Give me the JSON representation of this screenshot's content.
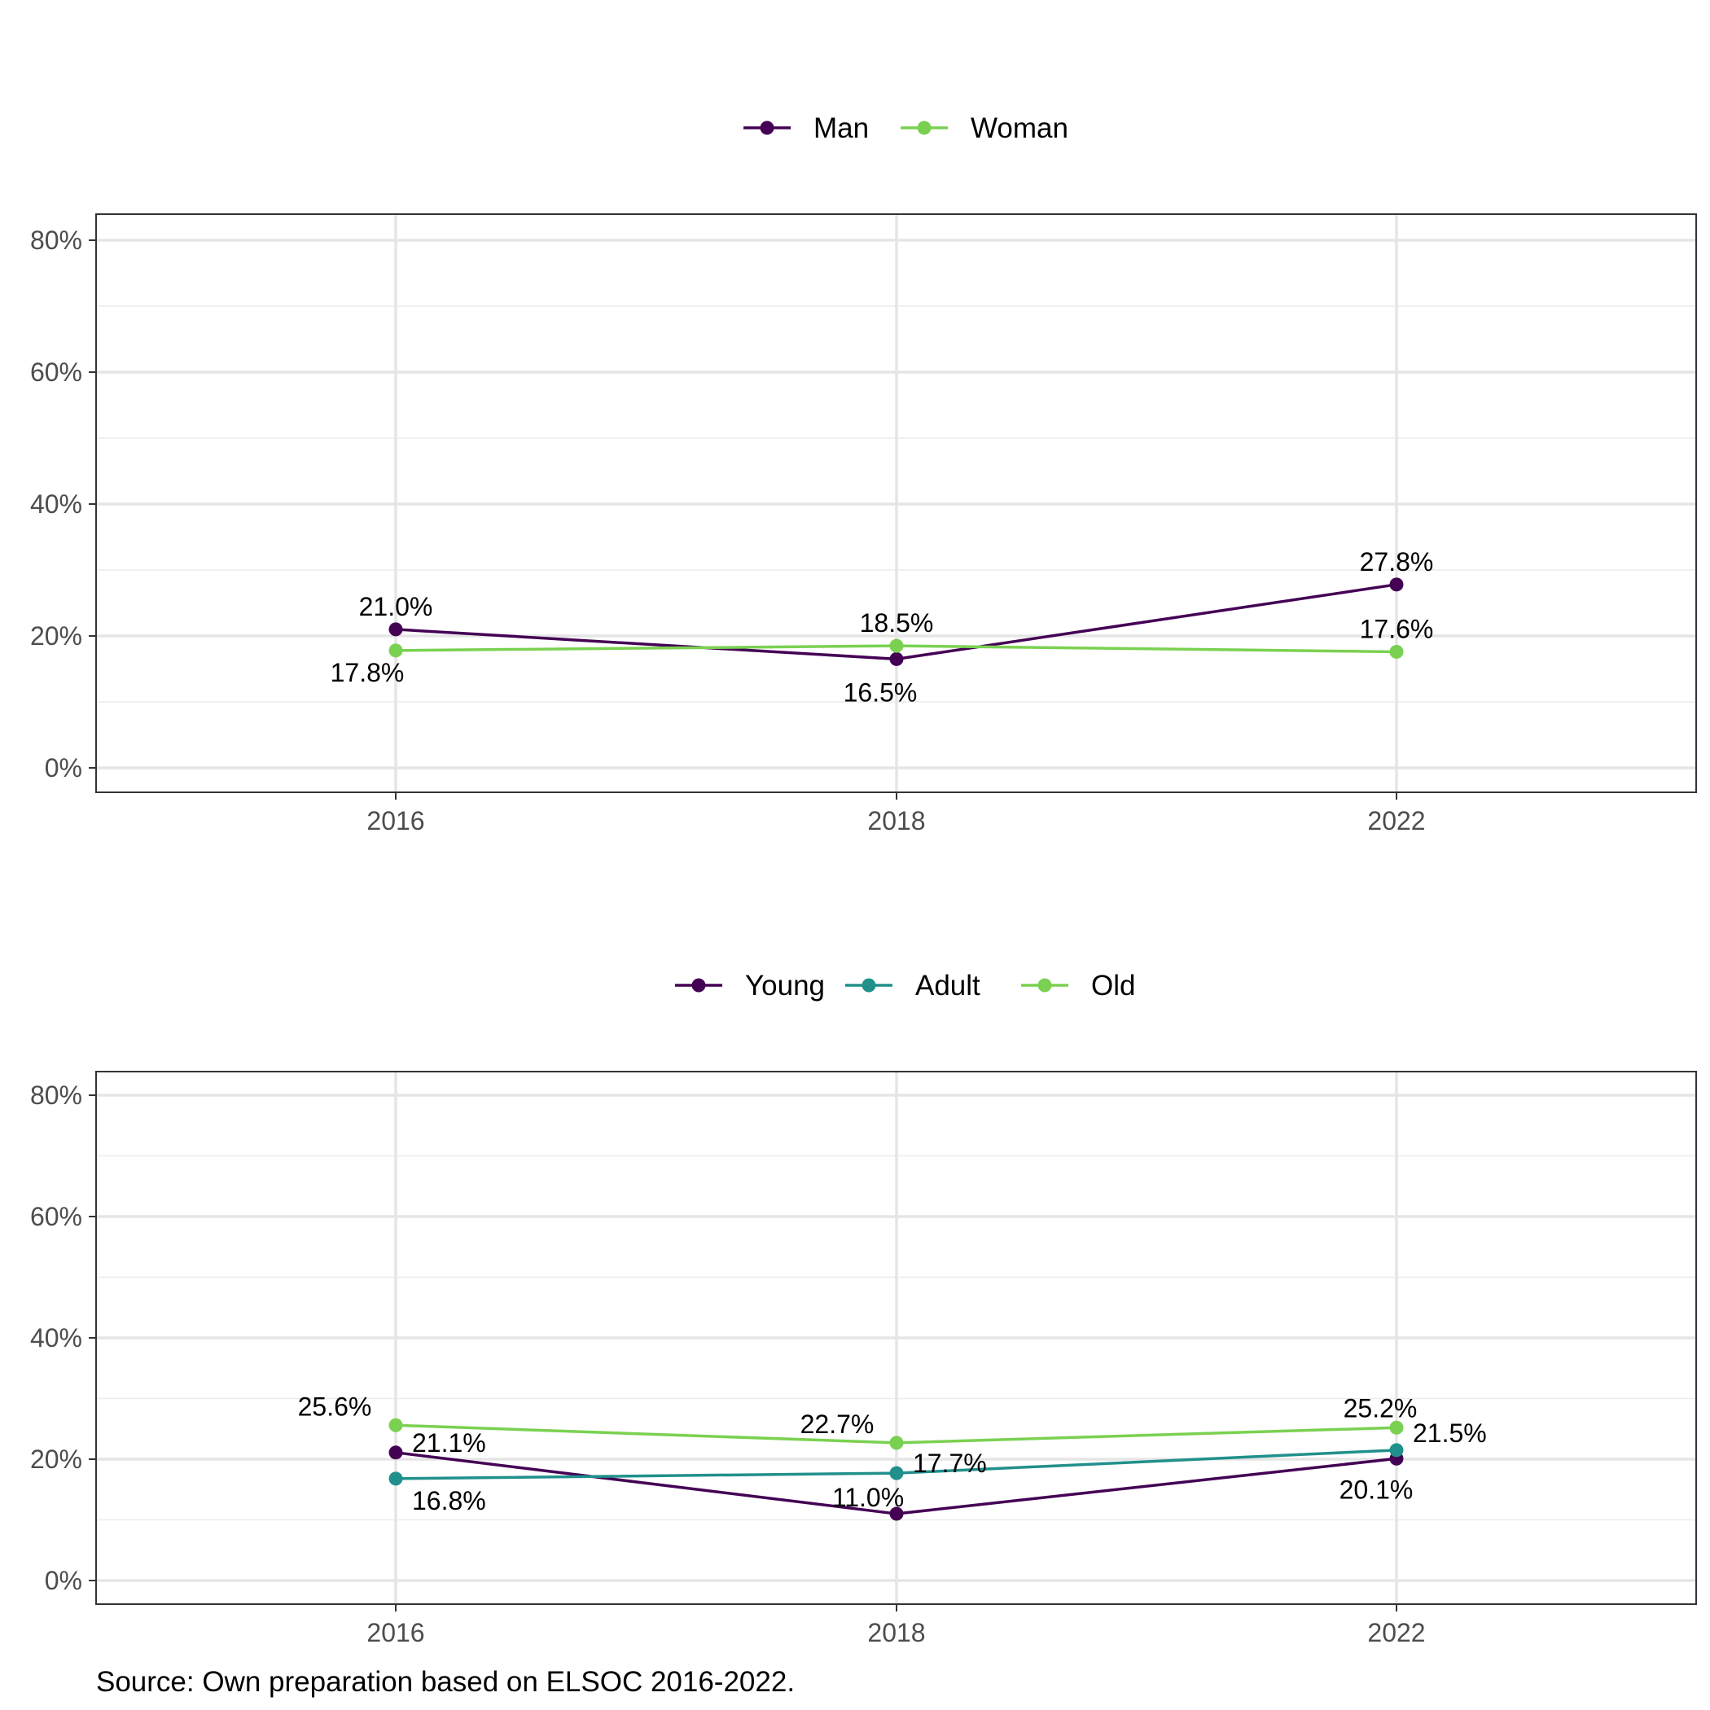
{
  "chart_data": [
    {
      "type": "line",
      "x": [
        "2016",
        "2018",
        "2022"
      ],
      "ylim": [
        0,
        80
      ],
      "y_ticks": [
        "0%",
        "20%",
        "40%",
        "60%",
        "80%"
      ],
      "grid": true,
      "legend_position": "top",
      "series": [
        {
          "name": "Man",
          "color": "#440154",
          "values": [
            21.0,
            16.5,
            27.8
          ],
          "labels": [
            "21.0%",
            "16.5%",
            "27.8%"
          ]
        },
        {
          "name": "Woman",
          "color": "#7AD151",
          "values": [
            17.8,
            18.5,
            17.6
          ],
          "labels": [
            "17.8%",
            "18.5%",
            "17.6%"
          ]
        }
      ]
    },
    {
      "type": "line",
      "x": [
        "2016",
        "2018",
        "2022"
      ],
      "ylim": [
        0,
        80
      ],
      "y_ticks": [
        "0%",
        "20%",
        "40%",
        "60%",
        "80%"
      ],
      "grid": true,
      "legend_position": "top",
      "series": [
        {
          "name": "Young",
          "color": "#440154",
          "values": [
            21.1,
            11.0,
            20.1
          ],
          "labels": [
            "21.1%",
            "11.0%",
            "20.1%"
          ]
        },
        {
          "name": "Adult",
          "color": "#21908C",
          "values": [
            16.8,
            17.7,
            21.5
          ],
          "labels": [
            "16.8%",
            "17.7%",
            "21.5%"
          ]
        },
        {
          "name": "Old",
          "color": "#7AD151",
          "values": [
            25.6,
            22.7,
            25.2
          ],
          "labels": [
            "25.6%",
            "22.7%",
            "25.2%"
          ]
        }
      ]
    }
  ],
  "caption": "Source: Own preparation based on ELSOC 2016-2022."
}
